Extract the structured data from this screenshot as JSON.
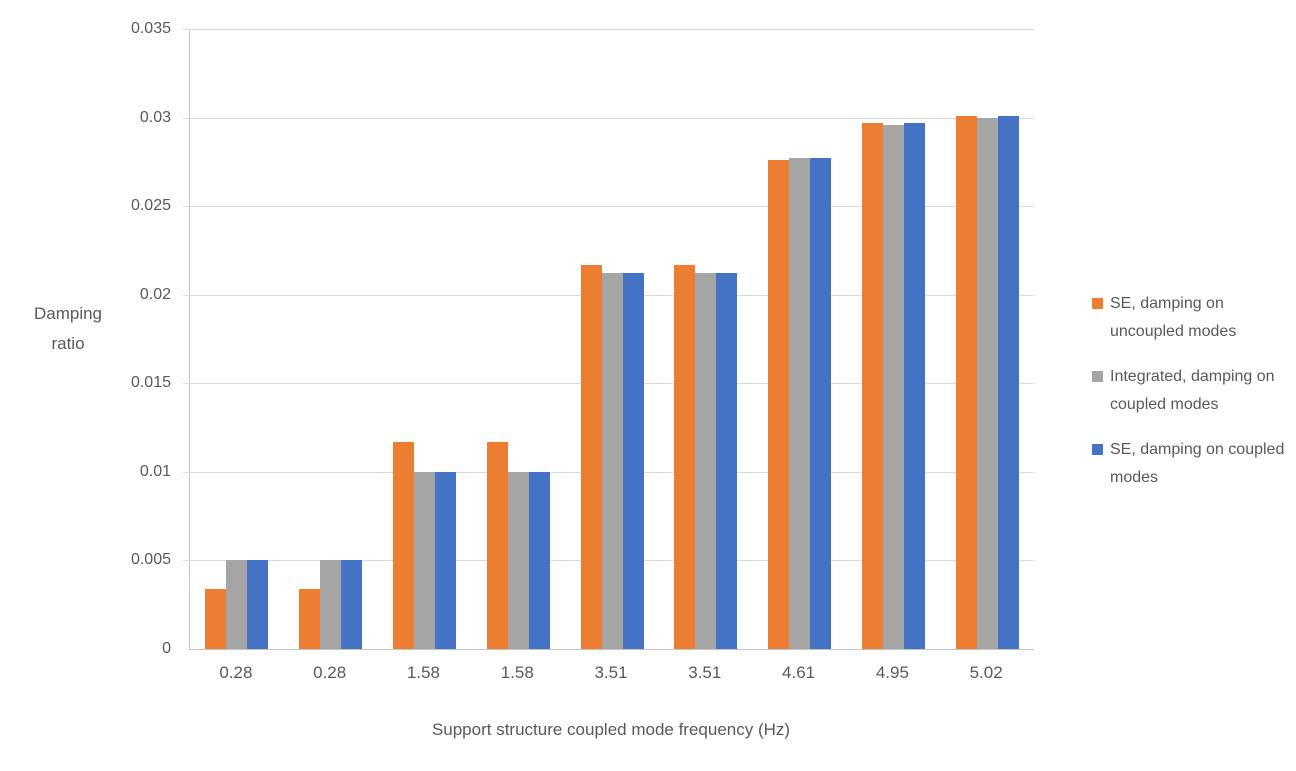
{
  "chart_data": {
    "type": "bar",
    "title": "",
    "xlabel": "Support structure coupled mode frequency (Hz)",
    "ylabel": "Damping ratio",
    "categories": [
      "0.28",
      "0.28",
      "1.58",
      "1.58",
      "3.51",
      "3.51",
      "4.61",
      "4.95",
      "5.02"
    ],
    "series": [
      {
        "name": "SE, damping on uncoupled modes",
        "color": "#ED7D31",
        "values": [
          0.0034,
          0.0034,
          0.0117,
          0.0117,
          0.0217,
          0.0217,
          0.0276,
          0.0297,
          0.0301
        ]
      },
      {
        "name": "Integrated, damping on coupled modes",
        "color": "#A5A5A5",
        "values": [
          0.005,
          0.005,
          0.01,
          0.01,
          0.0212,
          0.0212,
          0.0277,
          0.0296,
          0.03
        ]
      },
      {
        "name": "SE, damping on coupled modes",
        "color": "#4472C4",
        "values": [
          0.005,
          0.005,
          0.01,
          0.01,
          0.0212,
          0.0212,
          0.0277,
          0.0297,
          0.0301
        ]
      }
    ],
    "y_ticks": [
      0,
      0.005,
      0.01,
      0.015,
      0.02,
      0.025,
      0.03,
      0.035
    ],
    "y_tick_labels": [
      "0",
      "0.005",
      "0.01",
      "0.015",
      "0.02",
      "0.025",
      "0.03",
      "0.035"
    ],
    "ylim": [
      0,
      0.035
    ],
    "grid": true,
    "legend_position": "right"
  },
  "colors": {
    "text": "#595959",
    "gridline": "#D9D9D9",
    "axis_line": "#C3C3C3",
    "background": "#FFFFFF",
    "series_orange": "#ED7D31",
    "series_gray": "#A5A5A5",
    "series_blue": "#4472C4"
  }
}
